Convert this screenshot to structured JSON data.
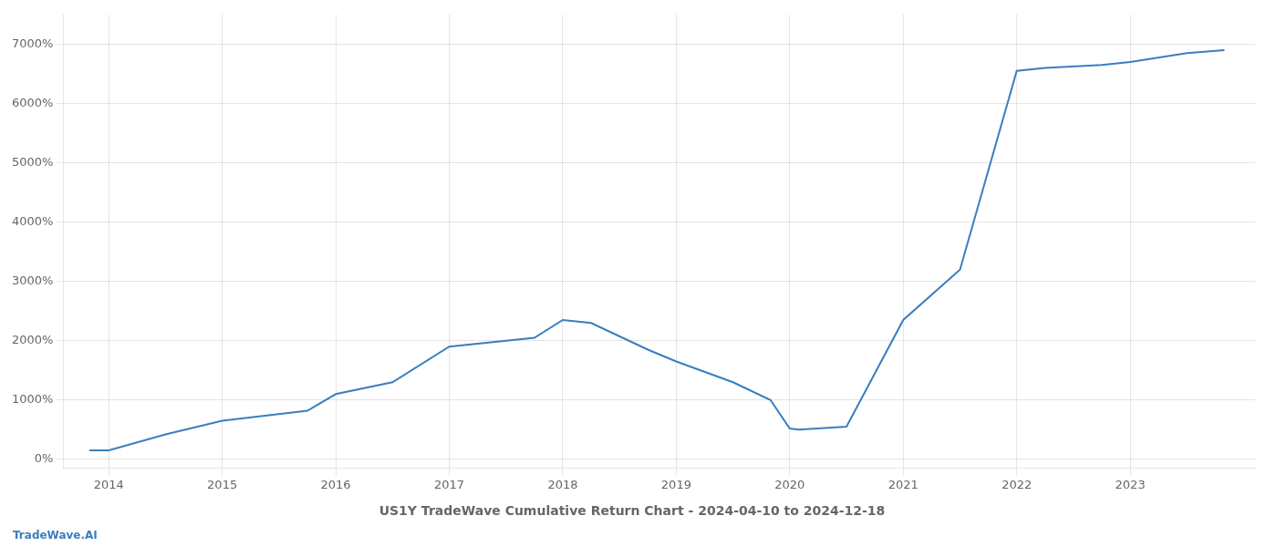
{
  "chart_data": {
    "type": "line",
    "title": "US1Y TradeWave Cumulative Return Chart - 2024-04-10 to 2024-12-18",
    "annotations": [
      "TradeWave.AI"
    ],
    "x": [
      2013.83,
      2014.0,
      2014.5,
      2015.0,
      2015.75,
      2016.0,
      2016.5,
      2017.0,
      2017.75,
      2018.0,
      2018.25,
      2018.75,
      2019.0,
      2019.5,
      2019.83,
      2020.0,
      2020.08,
      2020.5,
      2021.0,
      2021.5,
      2022.0,
      2022.25,
      2022.75,
      2023.0,
      2023.5,
      2023.83
    ],
    "values": [
      150,
      150,
      420,
      650,
      820,
      1100,
      1300,
      1900,
      2050,
      2350,
      2300,
      1850,
      1650,
      1300,
      1000,
      520,
      500,
      550,
      2350,
      3200,
      6550,
      6600,
      6650,
      6700,
      6850,
      6900
    ],
    "color": "#3a7ebf",
    "xlim": [
      2013.6,
      2024.1
    ],
    "xticks": [
      2014,
      2015,
      2016,
      2017,
      2018,
      2019,
      2020,
      2021,
      2022,
      2023
    ],
    "ylim": [
      -150,
      7500
    ],
    "yticks": [
      {
        "value": 0,
        "label": "0%"
      },
      {
        "value": 1000,
        "label": "1000%"
      },
      {
        "value": 2000,
        "label": "2000%"
      },
      {
        "value": 3000,
        "label": "3000%"
      },
      {
        "value": 4000,
        "label": "4000%"
      },
      {
        "value": 5000,
        "label": "5000%"
      },
      {
        "value": 6000,
        "label": "6000%"
      },
      {
        "value": 7000,
        "label": "7000%"
      }
    ],
    "grid": true
  }
}
